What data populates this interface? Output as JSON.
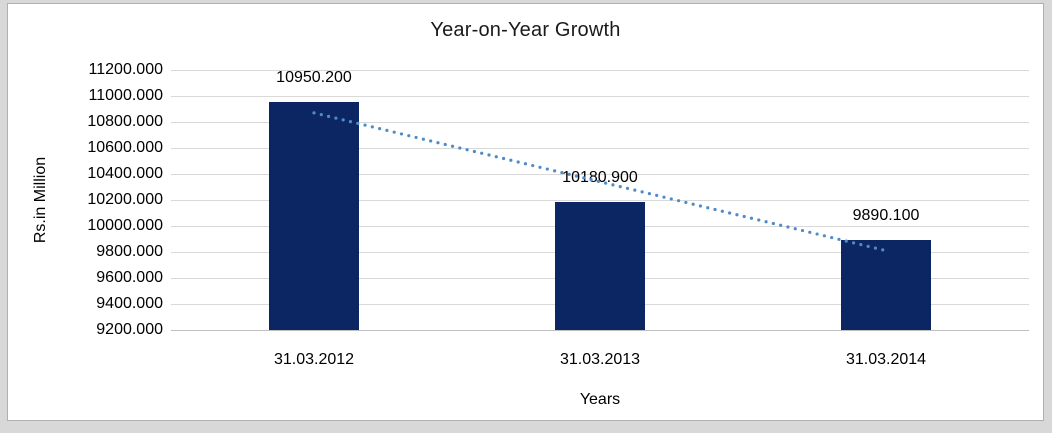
{
  "chart_data": {
    "type": "bar",
    "title": "Year-on-Year Growth",
    "xlabel": "Years",
    "ylabel": "Rs.in Million",
    "categories": [
      "31.03.2012",
      "31.03.2013",
      "31.03.2014"
    ],
    "values": [
      10950.2,
      10180.9,
      9890.1
    ],
    "data_labels": [
      "10950.200",
      "10180.900",
      "9890.100"
    ],
    "y_tick_labels": [
      "9200.000",
      "9400.000",
      "9600.000",
      "9800.000",
      "10000.000",
      "10200.000",
      "10400.000",
      "10600.000",
      "10800.000",
      "11000.000",
      "11200.000"
    ],
    "ylim": [
      9200,
      11200
    ],
    "grid": true,
    "legend": "none",
    "trendline": {
      "type": "linear",
      "style": "dotted",
      "color": "#4e8bc8"
    },
    "colors": {
      "bar": "#0c2663",
      "gridline": "#d9d9d9",
      "axis_line": "#bfbfbf",
      "text": "#000000",
      "frame_background": "#d8d8d8",
      "panel_border": "#b0b0b0"
    }
  }
}
